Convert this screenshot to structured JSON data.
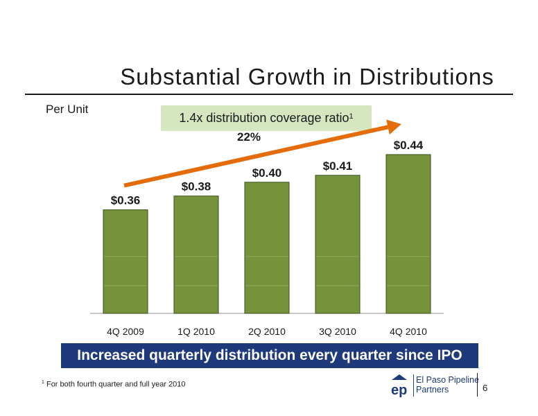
{
  "slide": {
    "title": "Substantial Growth in Distributions",
    "unit_label": "Per Unit",
    "callout_text": "1.4x distribution coverage ratio",
    "callout_sup": "1",
    "banner": "Increased quarterly distribution every quarter since IPO",
    "footnote_sup": "1",
    "footnote": "For both fourth quarter and full year 2010",
    "page_number": "6",
    "logo": {
      "mark": "ep",
      "line1": "El Paso Pipeline",
      "line2": "Partners"
    }
  },
  "chart_data": {
    "type": "bar",
    "title": "",
    "xlabel": "",
    "ylabel": "",
    "categories": [
      "4Q 2009",
      "1Q 2010",
      "2Q 2010",
      "3Q 2010",
      "4Q 2010"
    ],
    "values": [
      0.36,
      0.38,
      0.4,
      0.41,
      0.44
    ],
    "data_labels": [
      "$0.36",
      "$0.38",
      "$0.40",
      "$0.41",
      "$0.44"
    ],
    "ylim": [
      0.21,
      0.45
    ],
    "grid": false,
    "annotation": {
      "text": "22%",
      "arrow": "trend arrow from first bar to last bar"
    },
    "colors": {
      "bar": "#76933c",
      "bar_edge": "#3a4d1a",
      "arrow": "#e46c0a"
    }
  }
}
